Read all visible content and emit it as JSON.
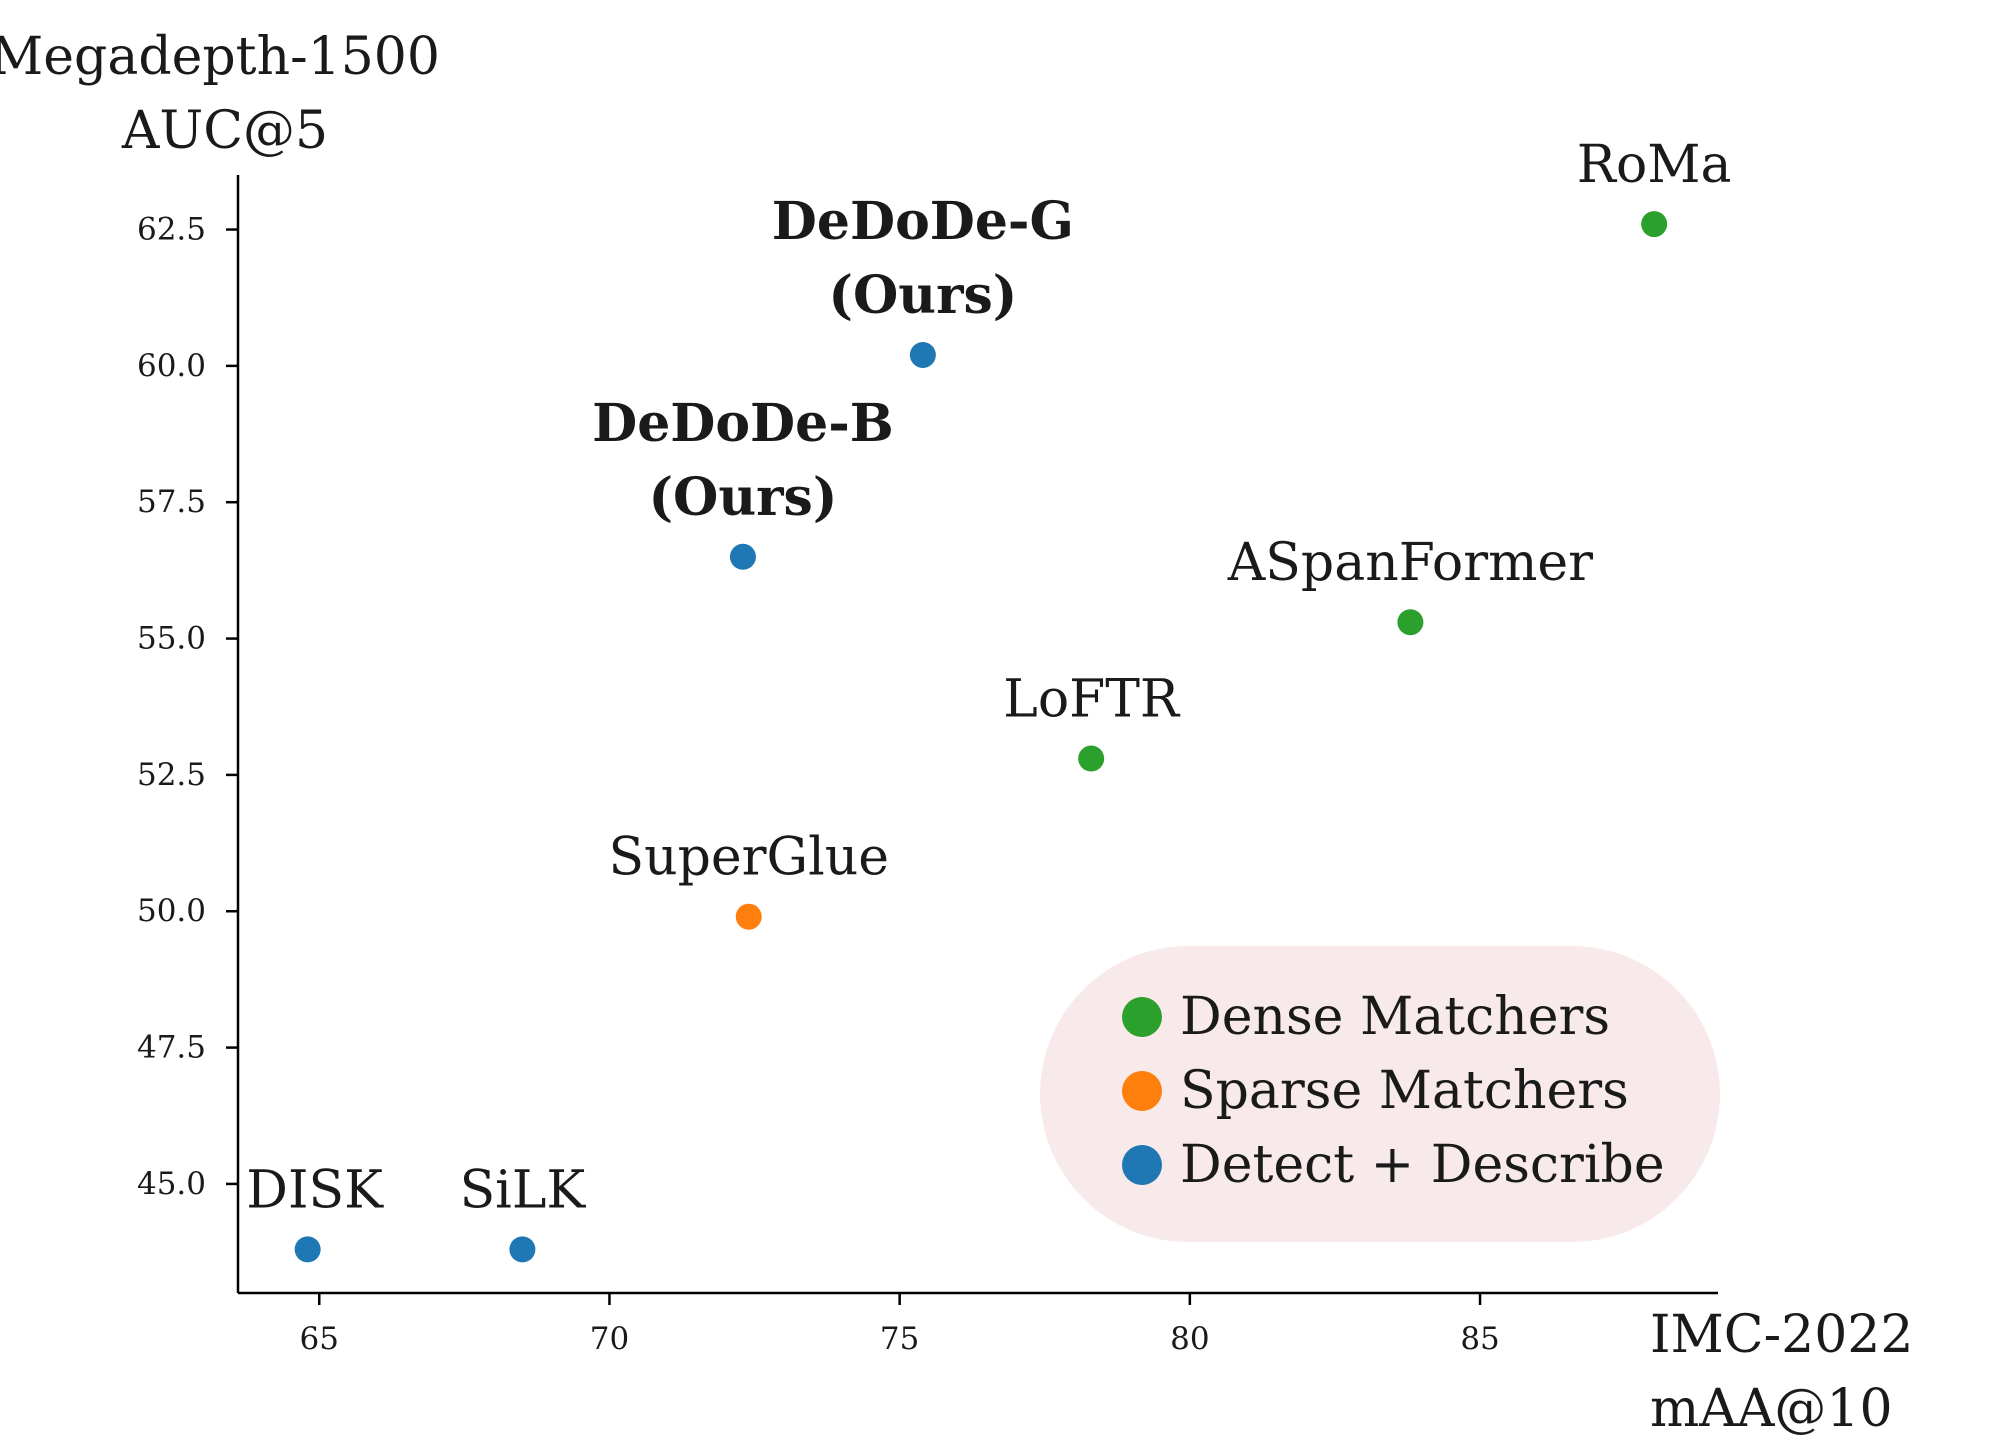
{
  "chart_data": {
    "type": "scatter",
    "title": "",
    "ylabel": [
      "Megadepth-1500",
      "AUC@5"
    ],
    "xlabel": [
      "IMC-2022",
      "mAA@10"
    ],
    "xlim": [
      63.6,
      89.1
    ],
    "ylim": [
      43.0,
      63.5
    ],
    "xticks": [
      65,
      70,
      75,
      80,
      85
    ],
    "xtick_labels": [
      "65",
      "70",
      "75",
      "80",
      "85"
    ],
    "yticks": [
      45.0,
      47.5,
      50.0,
      52.5,
      55.0,
      57.5,
      60.0,
      62.5
    ],
    "ytick_labels": [
      "45.0",
      "47.5",
      "50.0",
      "52.5",
      "55.0",
      "57.5",
      "60.0",
      "62.5"
    ],
    "grid": false,
    "legend_position": "bottom-right",
    "categories": [
      {
        "key": "dense",
        "name": "Dense Matchers",
        "color": "#2ca02c"
      },
      {
        "key": "sparse",
        "name": "Sparse Matchers",
        "color": "#ff7f0e"
      },
      {
        "key": "dd",
        "name": "Detect + Describe",
        "color": "#1f77b4"
      }
    ],
    "points": [
      {
        "label": [
          "DISK"
        ],
        "x": 64.8,
        "y": 43.8,
        "category": "dd",
        "bold": false
      },
      {
        "label": [
          "SiLK"
        ],
        "x": 68.5,
        "y": 43.8,
        "category": "dd",
        "bold": false
      },
      {
        "label": [
          "SuperGlue"
        ],
        "x": 72.4,
        "y": 49.9,
        "category": "sparse",
        "bold": false
      },
      {
        "label": [
          "DeDoDe-B",
          "(Ours)"
        ],
        "x": 72.3,
        "y": 56.5,
        "category": "dd",
        "bold": true
      },
      {
        "label": [
          "DeDoDe-G",
          "(Ours)"
        ],
        "x": 75.4,
        "y": 60.2,
        "category": "dd",
        "bold": true
      },
      {
        "label": [
          "LoFTR"
        ],
        "x": 78.3,
        "y": 52.8,
        "category": "dense",
        "bold": false
      },
      {
        "label": [
          "ASpanFormer"
        ],
        "x": 83.8,
        "y": 55.3,
        "category": "dense",
        "bold": false
      },
      {
        "label": [
          "RoMa"
        ],
        "x": 88.0,
        "y": 62.6,
        "category": "dense",
        "bold": false
      }
    ]
  },
  "legend_background": "#f8eaea"
}
